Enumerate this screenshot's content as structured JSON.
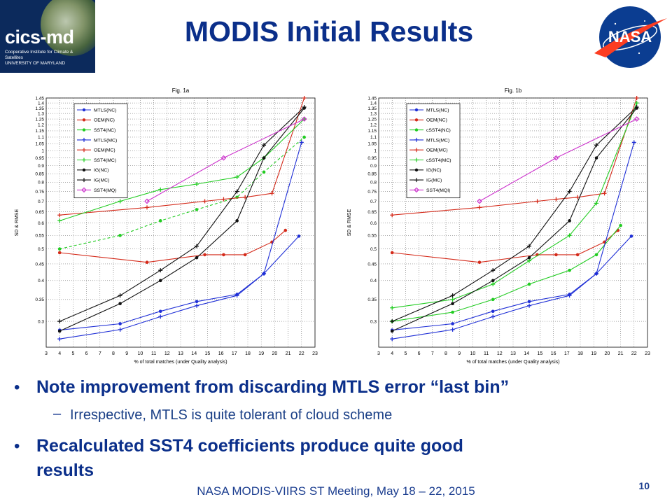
{
  "header": {
    "title": "MODIS Initial Results",
    "logo_left_name": "cics-md",
    "logo_left_sub1": "Cooperative Institute for Climate & Satellites",
    "logo_left_sub2": "UNIVERSITY OF MARYLAND",
    "logo_right_text": "NASA"
  },
  "bullets": [
    {
      "text": "Note improvement from discarding MTLS error “last bin”"
    },
    {
      "text": "Recalculated SST4 coefficients produce quite good",
      "text2": "results"
    }
  ],
  "sub_bullet": "Irrespective, MTLS is quite tolerant of cloud scheme",
  "footer": {
    "text": "NASA MODIS-VIIRS ST Meeting, May 18 – 22, 2015",
    "page": "10"
  },
  "colors": {
    "title": "#0b2f8a",
    "blue": "#1f2fd6",
    "red": "#d42a1a",
    "green": "#22cc22",
    "black": "#111111",
    "magenta": "#cc33cc"
  },
  "chart_data": [
    {
      "type": "line",
      "title": "Fig. 1a",
      "xlabel": "% of total matches (under Quality analysis)",
      "ylabel": "SD & RMSE",
      "xlim": [
        3,
        23
      ],
      "ylim": [
        0.25,
        1.45
      ],
      "y_scale": "log",
      "grid": true,
      "legend_position": "top-left",
      "xticks": [
        3,
        4,
        5,
        6,
        7,
        8,
        9,
        10,
        11,
        12,
        13,
        14,
        15,
        16,
        17,
        18,
        19,
        20,
        21,
        22,
        23
      ],
      "yticks": [
        0.3,
        0.35,
        0.4,
        0.45,
        0.5,
        0.55,
        0.6,
        0.65,
        0.7,
        0.75,
        0.8,
        0.85,
        0.9,
        0.95,
        1,
        1.05,
        1.1,
        1.15,
        1.2,
        1.25,
        1.3,
        1.35,
        1.4,
        1.45
      ],
      "series": [
        {
          "name": "MTLS(NC)",
          "color": "blue",
          "marker": "dot",
          "style": "solid",
          "x": [
            4,
            8.5,
            11.5,
            14.2,
            17.2,
            19.2,
            21.8
          ],
          "y": [
            0.282,
            0.295,
            0.322,
            0.345,
            0.363,
            0.42,
            0.547
          ]
        },
        {
          "name": "OEM(NC)",
          "color": "red",
          "marker": "dot",
          "style": "solid",
          "x": [
            4,
            10.5,
            14.8,
            16.2,
            17.8,
            19.8,
            20.8
          ],
          "y": [
            0.487,
            0.455,
            0.48,
            0.48,
            0.48,
            0.525,
            0.57
          ]
        },
        {
          "name": "SST4(NC)",
          "color": "green",
          "marker": "dot",
          "style": "dashed",
          "x": [
            4,
            8.5,
            11.5,
            14.2,
            17.2,
            19.2,
            22.2
          ],
          "y": [
            0.5,
            0.55,
            0.61,
            0.66,
            0.72,
            0.86,
            1.1
          ]
        },
        {
          "name": "MTLS(MC)",
          "color": "blue",
          "marker": "plus",
          "style": "solid",
          "x": [
            4,
            8.5,
            11.5,
            14.2,
            17.2,
            19.2,
            22
          ],
          "y": [
            0.265,
            0.283,
            0.31,
            0.335,
            0.36,
            0.42,
            1.06
          ]
        },
        {
          "name": "OEM(MC)",
          "color": "red",
          "marker": "plus",
          "style": "solid",
          "x": [
            4,
            10.5,
            14.8,
            16.2,
            17.8,
            19.8,
            22.2
          ],
          "y": [
            0.635,
            0.67,
            0.7,
            0.71,
            0.72,
            0.74,
            1.45
          ]
        },
        {
          "name": "SST4(MC)",
          "color": "green",
          "marker": "plus",
          "style": "solid",
          "x": [
            4,
            8.5,
            11.5,
            14.2,
            17.2,
            19.2,
            22.2
          ],
          "y": [
            0.61,
            0.7,
            0.76,
            0.79,
            0.83,
            0.95,
            1.25
          ]
        },
        {
          "name": "IG(NC)",
          "color": "black",
          "marker": "dot",
          "style": "solid",
          "x": [
            4,
            8.5,
            11.5,
            14.2,
            17.2,
            19.2,
            22.2
          ],
          "y": [
            0.28,
            0.34,
            0.4,
            0.47,
            0.61,
            0.95,
            1.35
          ]
        },
        {
          "name": "IG(MC)",
          "color": "black",
          "marker": "plus",
          "style": "solid",
          "x": [
            4,
            8.5,
            11.5,
            14.2,
            17.2,
            19.2,
            22.2
          ],
          "y": [
            0.3,
            0.36,
            0.43,
            0.51,
            0.75,
            1.04,
            1.36
          ]
        },
        {
          "name": "SST4(MQ)",
          "color": "magenta",
          "marker": "diamond",
          "style": "solid",
          "x": [
            10.5,
            16.2,
            22.2
          ],
          "y": [
            0.7,
            0.95,
            1.25
          ]
        }
      ]
    },
    {
      "type": "line",
      "title": "Fig. 1b",
      "xlabel": "% of total matches (under Quality analysis)",
      "ylabel": "SD & RMSE",
      "xlim": [
        3,
        23
      ],
      "ylim": [
        0.25,
        1.45
      ],
      "y_scale": "log",
      "grid": true,
      "legend_position": "top-left",
      "xticks": [
        3,
        4,
        5,
        6,
        7,
        8,
        9,
        10,
        11,
        12,
        13,
        14,
        15,
        16,
        17,
        18,
        19,
        20,
        21,
        22,
        23
      ],
      "yticks": [
        0.3,
        0.35,
        0.4,
        0.45,
        0.5,
        0.55,
        0.6,
        0.65,
        0.7,
        0.75,
        0.8,
        0.85,
        0.9,
        0.95,
        1,
        1.05,
        1.1,
        1.15,
        1.2,
        1.25,
        1.3,
        1.35,
        1.4,
        1.45
      ],
      "series": [
        {
          "name": "MTLS(NC)",
          "color": "blue",
          "marker": "dot",
          "style": "solid",
          "x": [
            4,
            8.5,
            11.5,
            14.2,
            17.2,
            19.2,
            21.8
          ],
          "y": [
            0.282,
            0.295,
            0.322,
            0.345,
            0.363,
            0.42,
            0.547
          ]
        },
        {
          "name": "OEM(NC)",
          "color": "red",
          "marker": "dot",
          "style": "solid",
          "x": [
            4,
            10.5,
            14.8,
            16.2,
            17.8,
            19.8,
            20.8
          ],
          "y": [
            0.487,
            0.455,
            0.48,
            0.48,
            0.48,
            0.525,
            0.57
          ]
        },
        {
          "name": "cSST4(NC)",
          "color": "green",
          "marker": "dot",
          "style": "solid",
          "x": [
            4,
            8.5,
            11.5,
            14.2,
            17.2,
            19.2,
            21
          ],
          "y": [
            0.3,
            0.32,
            0.35,
            0.39,
            0.43,
            0.48,
            0.59
          ]
        },
        {
          "name": "MTLS(MC)",
          "color": "blue",
          "marker": "plus",
          "style": "solid",
          "x": [
            4,
            8.5,
            11.5,
            14.2,
            17.2,
            19.2,
            22
          ],
          "y": [
            0.265,
            0.283,
            0.31,
            0.335,
            0.36,
            0.42,
            1.06
          ]
        },
        {
          "name": "OEM(MC)",
          "color": "red",
          "marker": "plus",
          "style": "solid",
          "x": [
            4,
            10.5,
            14.8,
            16.2,
            17.8,
            19.8,
            22.2
          ],
          "y": [
            0.635,
            0.67,
            0.7,
            0.71,
            0.72,
            0.74,
            1.45
          ]
        },
        {
          "name": "cSST4(MC)",
          "color": "green",
          "marker": "plus",
          "style": "solid",
          "x": [
            4,
            8.5,
            11.5,
            14.2,
            17.2,
            19.2,
            22.2
          ],
          "y": [
            0.33,
            0.35,
            0.39,
            0.46,
            0.55,
            0.69,
            1.4
          ]
        },
        {
          "name": "IG(NC)",
          "color": "black",
          "marker": "dot",
          "style": "solid",
          "x": [
            4,
            8.5,
            11.5,
            14.2,
            17.2,
            19.2,
            22.2
          ],
          "y": [
            0.28,
            0.34,
            0.4,
            0.47,
            0.61,
            0.95,
            1.35
          ]
        },
        {
          "name": "IG(MC)",
          "color": "black",
          "marker": "plus",
          "style": "solid",
          "x": [
            4,
            8.5,
            11.5,
            14.2,
            17.2,
            19.2,
            22.2
          ],
          "y": [
            0.3,
            0.36,
            0.43,
            0.51,
            0.75,
            1.04,
            1.36
          ]
        },
        {
          "name": "SST4(MQI)",
          "color": "magenta",
          "marker": "diamond",
          "style": "solid",
          "x": [
            10.5,
            16.2,
            22.2
          ],
          "y": [
            0.7,
            0.95,
            1.25
          ]
        }
      ]
    }
  ]
}
